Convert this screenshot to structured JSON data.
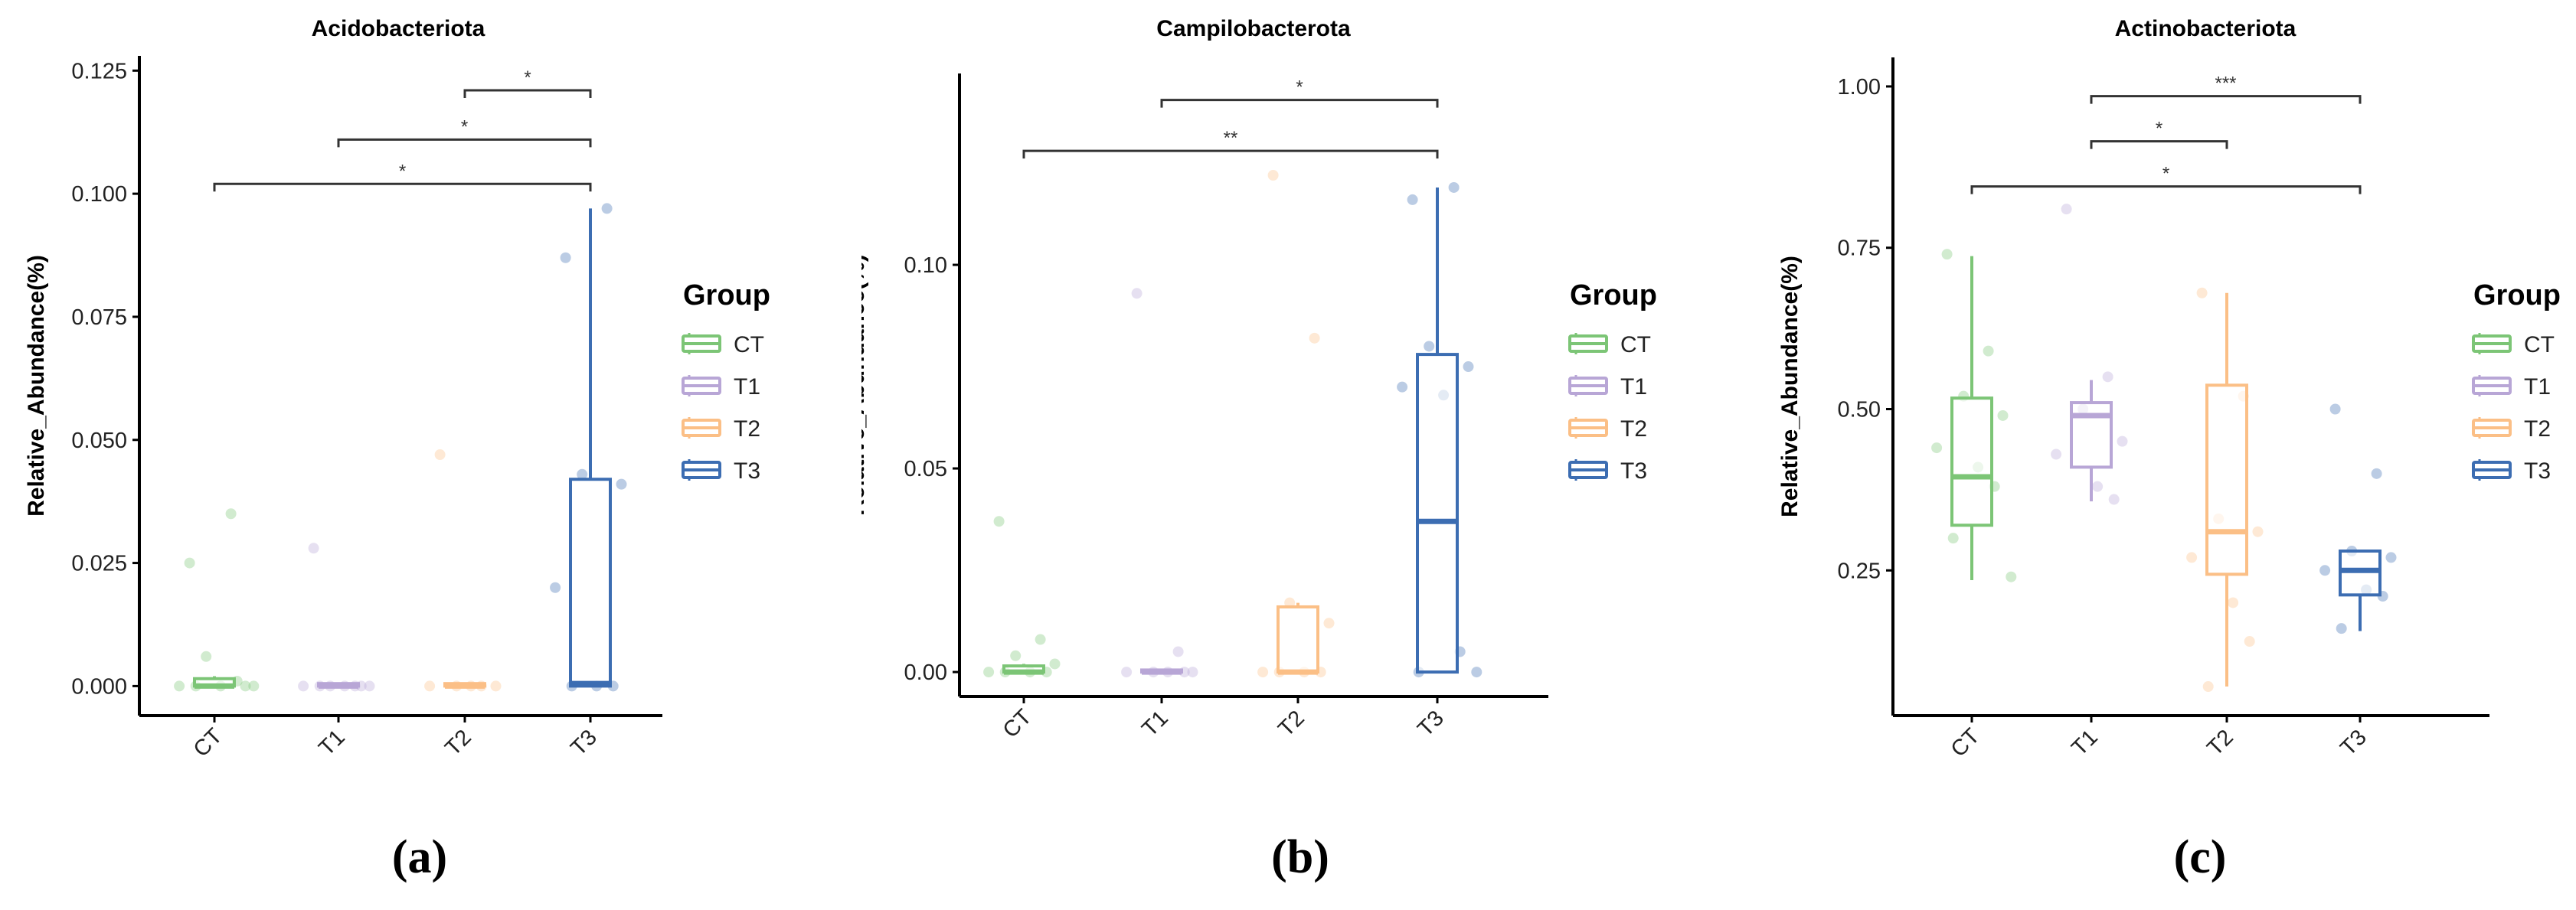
{
  "colors": {
    "CT": "#7cc576",
    "T1": "#b8a6d6",
    "T2": "#fbbf86",
    "T3": "#3c6db2",
    "axis": "#000000",
    "bracket": "#333333"
  },
  "legend_title": "Group",
  "chart_data": [
    {
      "type": "boxplot",
      "title": "Acidobacteriota",
      "xlabel": "",
      "ylabel": "Relative_Abundance(%)",
      "categories": [
        "CT",
        "T1",
        "T2",
        "T3"
      ],
      "ylim": [
        -0.006,
        0.128
      ],
      "yticks": [
        0.0,
        0.025,
        0.05,
        0.075,
        0.1,
        0.125
      ],
      "ytick_labels": [
        "0.000",
        "0.025",
        "0.050",
        "0.075",
        "0.100",
        "0.125"
      ],
      "boxes": [
        {
          "group": "CT",
          "min": 0.0,
          "q1": 0.0,
          "median": 0.0,
          "q3": 0.0015,
          "max": 0.002
        },
        {
          "group": "T1",
          "min": 0.0,
          "q1": 0.0,
          "median": 0.0,
          "q3": 0.0005,
          "max": 0.0005
        },
        {
          "group": "T2",
          "min": 0.0,
          "q1": 0.0,
          "median": 0.0,
          "q3": 0.0005,
          "max": 0.0005
        },
        {
          "group": "T3",
          "min": 0.0,
          "q1": 0.0,
          "median": 0.0005,
          "q3": 0.042,
          "max": 0.097
        }
      ],
      "points": [
        {
          "group": "CT",
          "values": [
            0.025,
            0.035,
            0.006,
            0.0,
            0.0,
            0.0,
            0.001,
            0.0,
            0.0
          ]
        },
        {
          "group": "T1",
          "values": [
            0.028,
            0.0,
            0.0,
            0.0,
            0.0,
            0.0,
            0.0,
            0.0
          ]
        },
        {
          "group": "T2",
          "values": [
            0.047,
            0.0,
            0.0,
            0.0,
            0.0,
            0.0
          ]
        },
        {
          "group": "T3",
          "values": [
            0.087,
            0.097,
            0.043,
            0.041,
            0.02,
            0.0,
            0.0,
            0.0
          ]
        }
      ],
      "significance": [
        {
          "from": "T2",
          "to": "T3",
          "y": 0.121,
          "label": "*"
        },
        {
          "from": "T1",
          "to": "T3",
          "y": 0.111,
          "label": "*"
        },
        {
          "from": "CT",
          "to": "T3",
          "y": 0.102,
          "label": "*"
        }
      ],
      "caption": "(a)"
    },
    {
      "type": "boxplot",
      "title": "Campilobacterota",
      "xlabel": "",
      "ylabel": "Relative_Abundance(%)",
      "categories": [
        "CT",
        "T1",
        "T2",
        "T3"
      ],
      "ylim": [
        -0.006,
        0.147
      ],
      "yticks": [
        0.0,
        0.05,
        0.1
      ],
      "ytick_labels": [
        "0.00",
        "0.05",
        "0.10"
      ],
      "boxes": [
        {
          "group": "CT",
          "min": 0.0,
          "q1": 0.0,
          "median": 0.0,
          "q3": 0.0015,
          "max": 0.002
        },
        {
          "group": "T1",
          "min": 0.0,
          "q1": 0.0,
          "median": 0.0,
          "q3": 0.0005,
          "max": 0.0005
        },
        {
          "group": "T2",
          "min": 0.0,
          "q1": 0.0,
          "median": 0.0,
          "q3": 0.016,
          "max": 0.017
        },
        {
          "group": "T3",
          "min": 0.0,
          "q1": 0.0,
          "median": 0.037,
          "q3": 0.078,
          "max": 0.119
        }
      ],
      "points": [
        {
          "group": "CT",
          "values": [
            0.037,
            0.008,
            0.004,
            0.002,
            0.0,
            0.0,
            0.0,
            0.0
          ]
        },
        {
          "group": "T1",
          "values": [
            0.093,
            0.005,
            0.0,
            0.0,
            0.0,
            0.0,
            0.0
          ]
        },
        {
          "group": "T2",
          "values": [
            0.122,
            0.082,
            0.017,
            0.012,
            0.0,
            0.0,
            0.0,
            0.0
          ]
        },
        {
          "group": "T3",
          "values": [
            0.116,
            0.119,
            0.08,
            0.075,
            0.07,
            0.068,
            0.005,
            0.0,
            0.0
          ]
        }
      ],
      "significance": [
        {
          "from": "T1",
          "to": "T3",
          "y": 0.1405,
          "label": "*"
        },
        {
          "from": "CT",
          "to": "T3",
          "y": 0.128,
          "label": "**"
        }
      ],
      "caption": "(b)"
    },
    {
      "type": "boxplot",
      "title": "Actinobacteriota",
      "xlabel": "",
      "ylabel": "Relative_Abundance(%)",
      "categories": [
        "CT",
        "T1",
        "T2",
        "T3"
      ],
      "ylim": [
        0.025,
        1.045
      ],
      "yticks": [
        0.25,
        0.5,
        0.75,
        1.0
      ],
      "ytick_labels": [
        "0.25",
        "0.50",
        "0.75",
        "1.00"
      ],
      "boxes": [
        {
          "group": "CT",
          "min": 0.235,
          "q1": 0.32,
          "median": 0.395,
          "q3": 0.517,
          "max": 0.737
        },
        {
          "group": "T1",
          "min": 0.357,
          "q1": 0.41,
          "median": 0.49,
          "q3": 0.51,
          "max": 0.545
        },
        {
          "group": "T2",
          "min": 0.07,
          "q1": 0.244,
          "median": 0.31,
          "q3": 0.537,
          "max": 0.68
        },
        {
          "group": "T3",
          "min": 0.156,
          "q1": 0.212,
          "median": 0.25,
          "q3": 0.28,
          "max": 0.28
        }
      ],
      "points": [
        {
          "group": "CT",
          "values": [
            0.74,
            0.59,
            0.52,
            0.49,
            0.44,
            0.41,
            0.38,
            0.3,
            0.24
          ]
        },
        {
          "group": "T1",
          "values": [
            0.81,
            0.55,
            0.5,
            0.45,
            0.43,
            0.38,
            0.36
          ]
        },
        {
          "group": "T2",
          "values": [
            0.68,
            0.52,
            0.33,
            0.31,
            0.27,
            0.2,
            0.14,
            0.07
          ]
        },
        {
          "group": "T3",
          "values": [
            0.5,
            0.4,
            0.28,
            0.27,
            0.25,
            0.22,
            0.21,
            0.16
          ]
        }
      ],
      "significance": [
        {
          "from": "T1",
          "to": "T3",
          "y": 0.985,
          "label": "***"
        },
        {
          "from": "T1",
          "to": "T2",
          "y": 0.915,
          "label": "*"
        },
        {
          "from": "CT",
          "to": "T3",
          "y": 0.845,
          "label": "*"
        }
      ],
      "caption": "(c)"
    }
  ]
}
